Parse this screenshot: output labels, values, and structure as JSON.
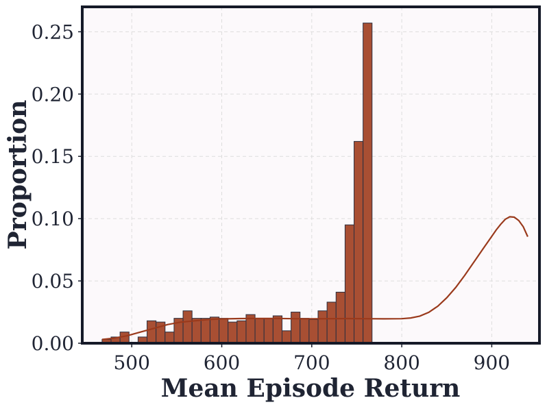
{
  "colors": {
    "bar_fill": "#a84f33",
    "bar_edge": "#2b2f3f",
    "kde_line": "#9a3a1c",
    "plot_bg": "#fcf9fb",
    "frame": "#151a28",
    "grid": "#dddddd",
    "text": "#1f2433"
  },
  "chart_data": {
    "type": "bar",
    "xlabel": "Mean Episode Return",
    "ylabel": "Proportion",
    "xlim": [
      445,
      953
    ],
    "ylim": [
      0,
      0.27
    ],
    "grid": true,
    "x_ticks": [
      500,
      600,
      700,
      800,
      900
    ],
    "x_tick_labels": [
      "500",
      "600",
      "700",
      "800",
      "900"
    ],
    "y_ticks": [
      0.0,
      0.05,
      0.1,
      0.15,
      0.2,
      0.25
    ],
    "y_tick_labels": [
      "0.00",
      "0.05",
      "0.10",
      "0.15",
      "0.20",
      "0.25"
    ],
    "bin_edges": [
      460,
      470,
      480,
      490,
      500,
      510,
      520,
      530,
      540,
      550,
      560,
      570,
      580,
      590,
      600,
      610,
      620,
      630,
      640,
      650,
      660,
      670,
      680,
      690,
      700,
      710,
      720,
      730,
      740,
      750,
      760,
      770,
      780,
      790,
      800,
      810,
      820,
      830,
      840,
      850,
      860,
      870,
      880,
      890,
      900,
      910,
      920,
      930,
      940
    ],
    "histogram": [
      {
        "x0": 467,
        "x1": 477,
        "value": 0.003
      },
      {
        "x0": 477,
        "x1": 487,
        "value": 0.005
      },
      {
        "x0": 487,
        "x1": 497,
        "value": 0.009
      },
      {
        "x0": 507,
        "x1": 517,
        "value": 0.005
      },
      {
        "x0": 517,
        "x1": 527,
        "value": 0.018
      },
      {
        "x0": 527,
        "x1": 537,
        "value": 0.017
      },
      {
        "x0": 537,
        "x1": 547,
        "value": 0.009
      },
      {
        "x0": 547,
        "x1": 557,
        "value": 0.02
      },
      {
        "x0": 557,
        "x1": 567,
        "value": 0.026
      },
      {
        "x0": 567,
        "x1": 577,
        "value": 0.02
      },
      {
        "x0": 577,
        "x1": 587,
        "value": 0.02
      },
      {
        "x0": 587,
        "x1": 597,
        "value": 0.021
      },
      {
        "x0": 597,
        "x1": 607,
        "value": 0.02
      },
      {
        "x0": 607,
        "x1": 617,
        "value": 0.017
      },
      {
        "x0": 617,
        "x1": 627,
        "value": 0.018
      },
      {
        "x0": 627,
        "x1": 637,
        "value": 0.023
      },
      {
        "x0": 637,
        "x1": 647,
        "value": 0.02
      },
      {
        "x0": 647,
        "x1": 657,
        "value": 0.02
      },
      {
        "x0": 657,
        "x1": 667,
        "value": 0.022
      },
      {
        "x0": 667,
        "x1": 677,
        "value": 0.01
      },
      {
        "x0": 677,
        "x1": 687,
        "value": 0.025
      },
      {
        "x0": 687,
        "x1": 697,
        "value": 0.02
      },
      {
        "x0": 697,
        "x1": 707,
        "value": 0.019
      },
      {
        "x0": 707,
        "x1": 717,
        "value": 0.026
      },
      {
        "x0": 717,
        "x1": 727,
        "value": 0.033
      },
      {
        "x0": 727,
        "x1": 737,
        "value": 0.041
      },
      {
        "x0": 737,
        "x1": 747,
        "value": 0.095
      },
      {
        "x0": 747,
        "x1": 757,
        "value": 0.162
      },
      {
        "x0": 757,
        "x1": 767,
        "value": 0.257
      }
    ],
    "kde": {
      "x": [
        467,
        480,
        495,
        510,
        525,
        540,
        555,
        570,
        585,
        600,
        620,
        640,
        660,
        680,
        700,
        720,
        740,
        760,
        780,
        800,
        810,
        820,
        830,
        840,
        850,
        860,
        870,
        880,
        890,
        900,
        905,
        910,
        915,
        920,
        925,
        930,
        935,
        940
      ],
      "y": [
        0.003,
        0.004,
        0.006,
        0.009,
        0.012,
        0.015,
        0.017,
        0.018,
        0.019,
        0.0195,
        0.0198,
        0.0199,
        0.0199,
        0.0197,
        0.0196,
        0.0197,
        0.0198,
        0.0197,
        0.0196,
        0.0197,
        0.0203,
        0.0218,
        0.0248,
        0.0297,
        0.0365,
        0.0448,
        0.0545,
        0.065,
        0.0755,
        0.0858,
        0.091,
        0.0955,
        0.0995,
        0.1015,
        0.1012,
        0.0985,
        0.0935,
        0.0855
      ]
    }
  }
}
